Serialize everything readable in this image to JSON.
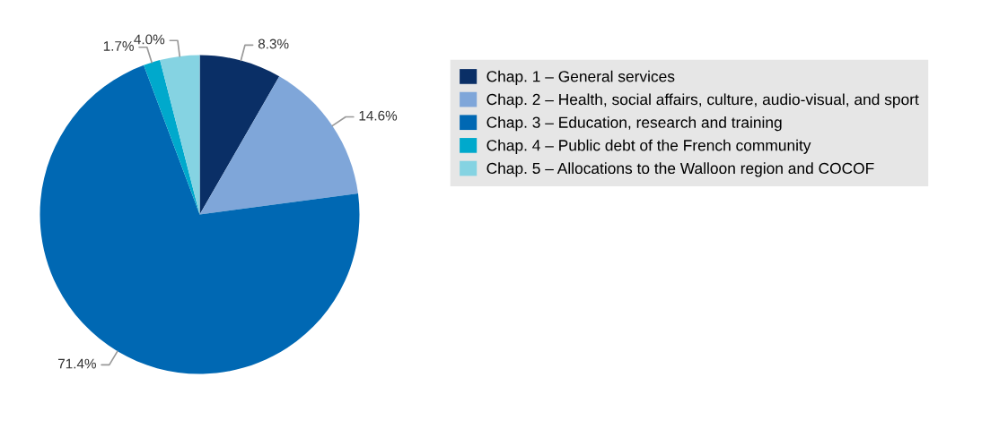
{
  "chart_data": {
    "type": "pie",
    "categories": [
      "Chap. 1 – General services",
      "Chap. 2 – Health, social affairs, culture, audio-visual, and sport",
      "Chap. 3 – Education, research and training",
      "Chap. 4 – Public debt of the French community",
      "Chap. 5 – Allocations to the Walloon region and COCOF"
    ],
    "values": [
      8.3,
      14.6,
      71.4,
      1.7,
      4.0
    ],
    "colors": [
      "#0a2f66",
      "#7fa6d9",
      "#0068b3",
      "#00a9cc",
      "#85d3e2"
    ],
    "value_labels": [
      "8.3%",
      "14.6%",
      "71.4%",
      "1.7%",
      "4.0%"
    ],
    "legend": "right"
  }
}
